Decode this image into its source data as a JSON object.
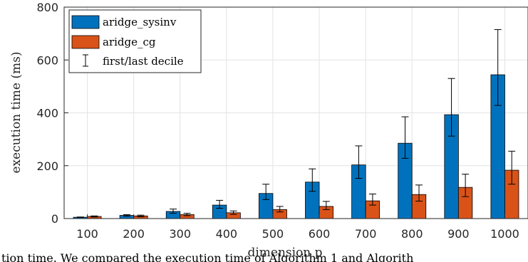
{
  "chart_data": {
    "type": "bar",
    "xlabel": "dimension p",
    "ylabel": "execution time (ms)",
    "categories": [
      "100",
      "200",
      "300",
      "400",
      "500",
      "600",
      "700",
      "800",
      "900",
      "1000"
    ],
    "ylim": [
      0,
      800
    ],
    "yticks": [
      0,
      200,
      400,
      600,
      800
    ],
    "grid": true,
    "legend_position": "top-left",
    "series": [
      {
        "name": "aridge_sysinv",
        "color": "#0072BD",
        "values": [
          5,
          12,
          27,
          51,
          95,
          138,
          203,
          285,
          393,
          544
        ],
        "error_low": [
          4,
          9,
          20,
          39,
          72,
          103,
          152,
          228,
          312,
          428
        ],
        "error_high": [
          6,
          15,
          36,
          69,
          130,
          188,
          275,
          385,
          530,
          715
        ]
      },
      {
        "name": "aridge_cg",
        "color": "#D95319",
        "values": [
          8,
          10,
          15,
          22,
          34,
          46,
          67,
          91,
          118,
          183
        ],
        "error_low": [
          6,
          7,
          11,
          16,
          25,
          34,
          51,
          66,
          83,
          130
        ],
        "error_high": [
          10,
          13,
          20,
          29,
          46,
          65,
          93,
          127,
          168,
          255
        ]
      }
    ],
    "legend_extra": "first/last decile"
  },
  "caption_fragment": "tion time. We compared the execution time of Algorithm 1 and Algorith"
}
